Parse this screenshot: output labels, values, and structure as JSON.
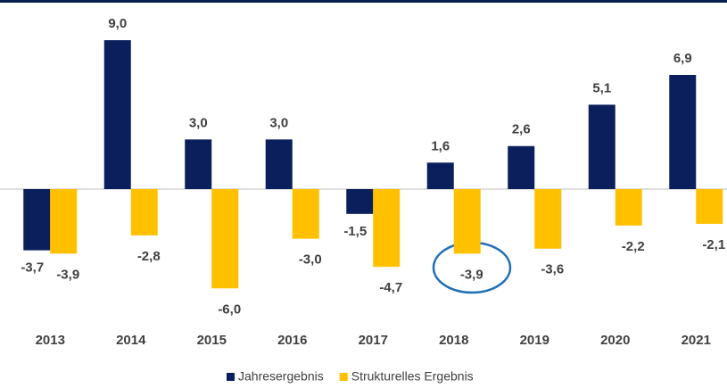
{
  "chart_data": {
    "type": "bar",
    "categories": [
      "2013",
      "2014",
      "2015",
      "2016",
      "2017",
      "2018",
      "2019",
      "2020",
      "2021"
    ],
    "series": [
      {
        "name": "Jahresergebnis",
        "color": "#0b1f5c",
        "values": [
          -3.7,
          9.0,
          3.0,
          3.0,
          -1.5,
          1.6,
          2.6,
          5.1,
          6.9
        ],
        "value_labels": [
          "-3,7",
          "9,0",
          "3,0",
          "3,0",
          "-1,5",
          "1,6",
          "2,6",
          "5,1",
          "6,9"
        ]
      },
      {
        "name": "Strukturelles Ergebnis",
        "color": "#ffc000",
        "values": [
          -3.9,
          -2.8,
          -6.0,
          -3.0,
          -4.7,
          -3.9,
          -3.6,
          -2.2,
          -2.1
        ],
        "value_labels": [
          "-3,9",
          "-2,8",
          "-6,0",
          "-3,0",
          "-4,7",
          "-3,9",
          "-3,6",
          "-2,2",
          "-2,1"
        ]
      }
    ],
    "ylim": [
      -8,
      10
    ],
    "legend": "bottom"
  }
}
